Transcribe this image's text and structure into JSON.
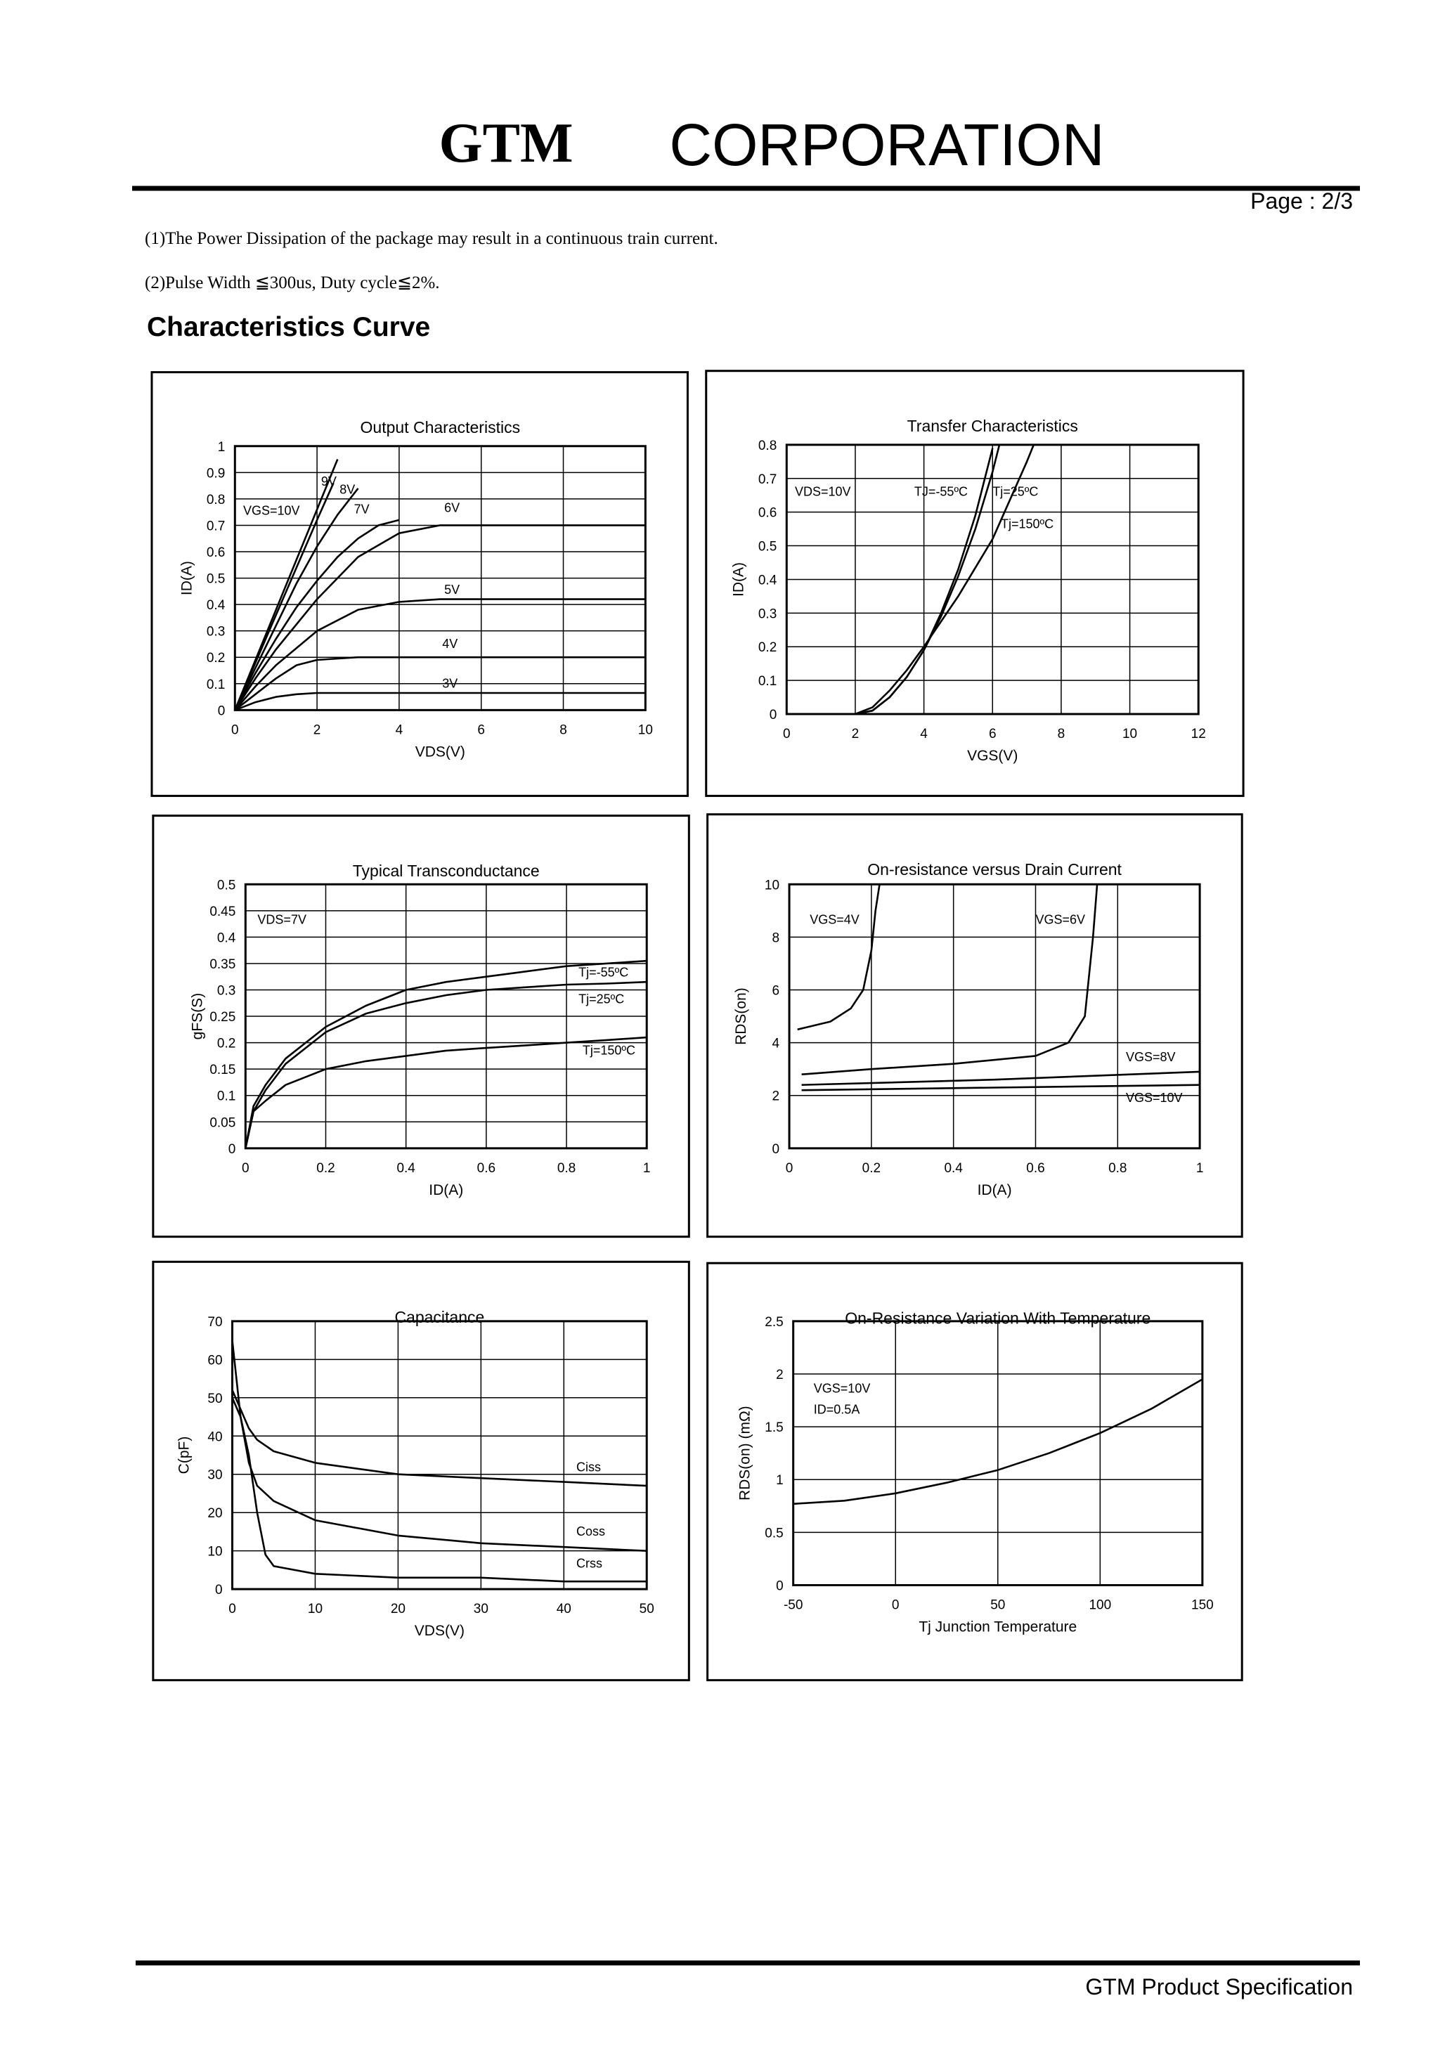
{
  "header": {
    "logo": "GTM",
    "title": "CORPORATION",
    "page": "Page : 2/3"
  },
  "notes": [
    "(1)The Power Dissipation of the package may result in a continuous train current.",
    "(2)Pulse Width ≦300us, Duty cycle≦2%."
  ],
  "section_title": "Characteristics Curve",
  "footer": "GTM Product Specification",
  "chart_data": [
    {
      "type": "line",
      "title": "Output Characteristics",
      "xlabel": "VDS(V)",
      "ylabel": "ID(A)",
      "xlim": [
        0,
        10
      ],
      "ylim": [
        0,
        1
      ],
      "xticks": [
        0,
        2,
        4,
        6,
        8,
        10
      ],
      "yticks": [
        0,
        0.1,
        0.2,
        0.3,
        0.4,
        0.5,
        0.6,
        0.7,
        0.8,
        0.9,
        1
      ],
      "grid": true,
      "color": "#000000",
      "series": [
        {
          "name": "VGS=10V",
          "x": [
            0,
            0.5,
            1,
            1.5,
            2,
            2.5
          ],
          "values": [
            0,
            0.19,
            0.38,
            0.57,
            0.76,
            0.95
          ]
        },
        {
          "name": "9V",
          "x": [
            0,
            0.5,
            1,
            1.5,
            2,
            2.4
          ],
          "values": [
            0,
            0.18,
            0.36,
            0.54,
            0.72,
            0.86
          ]
        },
        {
          "name": "8V",
          "x": [
            0,
            0.5,
            1,
            1.5,
            2,
            2.5,
            3
          ],
          "values": [
            0,
            0.16,
            0.32,
            0.48,
            0.62,
            0.74,
            0.84
          ]
        },
        {
          "name": "7V",
          "x": [
            0,
            0.5,
            1,
            1.5,
            2,
            2.5,
            3,
            3.5,
            4
          ],
          "values": [
            0,
            0.14,
            0.27,
            0.39,
            0.49,
            0.58,
            0.65,
            0.7,
            0.72
          ]
        },
        {
          "name": "6V",
          "x": [
            0,
            0.5,
            1,
            2,
            3,
            4,
            5,
            10
          ],
          "values": [
            0,
            0.12,
            0.23,
            0.42,
            0.58,
            0.67,
            0.7,
            0.7
          ]
        },
        {
          "name": "5V",
          "x": [
            0,
            0.5,
            1,
            2,
            3,
            4,
            5,
            10
          ],
          "values": [
            0,
            0.09,
            0.17,
            0.3,
            0.38,
            0.41,
            0.42,
            0.42
          ]
        },
        {
          "name": "4V",
          "x": [
            0,
            0.5,
            1,
            1.5,
            2,
            3,
            10
          ],
          "values": [
            0,
            0.06,
            0.12,
            0.17,
            0.19,
            0.2,
            0.2
          ]
        },
        {
          "name": "3V",
          "x": [
            0,
            0.5,
            1,
            1.5,
            2,
            10
          ],
          "values": [
            0,
            0.03,
            0.05,
            0.06,
            0.065,
            0.065
          ]
        }
      ]
    },
    {
      "type": "line",
      "title": "Transfer Characteristics",
      "xlabel": "VGS(V)",
      "ylabel": "ID(A)",
      "xlim": [
        0,
        12
      ],
      "ylim": [
        0,
        0.8
      ],
      "xticks": [
        0,
        2,
        4,
        6,
        8,
        10,
        12
      ],
      "yticks": [
        0,
        0.1,
        0.2,
        0.3,
        0.4,
        0.5,
        0.6,
        0.7,
        0.8
      ],
      "grid": true,
      "color": "#000000",
      "annotations": [
        "VDS=10V"
      ],
      "series": [
        {
          "name": "TJ=-55ºC",
          "x": [
            2,
            2.5,
            3,
            3.5,
            4,
            4.5,
            5,
            5.5,
            6
          ],
          "values": [
            0,
            0.01,
            0.05,
            0.11,
            0.19,
            0.3,
            0.43,
            0.59,
            0.79
          ]
        },
        {
          "name": "Tj=25ºC",
          "x": [
            2,
            2.5,
            3,
            3.5,
            4,
            4.5,
            5,
            5.5,
            6,
            6.2
          ],
          "values": [
            0,
            0.01,
            0.05,
            0.11,
            0.19,
            0.29,
            0.41,
            0.55,
            0.72,
            0.8
          ]
        },
        {
          "name": "Tj=150ºC",
          "x": [
            2,
            2.5,
            3,
            3.5,
            4,
            5,
            6,
            7,
            7.2
          ],
          "values": [
            0,
            0.02,
            0.07,
            0.13,
            0.2,
            0.35,
            0.52,
            0.75,
            0.8
          ]
        }
      ]
    },
    {
      "type": "line",
      "title": "Typical Transconductance",
      "xlabel": "ID(A)",
      "ylabel": "gFS(S)",
      "xlim": [
        0,
        1
      ],
      "ylim": [
        0,
        0.5
      ],
      "xticks": [
        0,
        0.2,
        0.4,
        0.6,
        0.8,
        1
      ],
      "yticks": [
        0,
        0.05,
        0.1,
        0.15,
        0.2,
        0.25,
        0.3,
        0.35,
        0.4,
        0.45,
        0.5
      ],
      "grid": true,
      "color": "#000000",
      "annotations": [
        "VDS=7V"
      ],
      "series": [
        {
          "name": "Tj=-55ºC",
          "x": [
            0,
            0.02,
            0.05,
            0.1,
            0.2,
            0.3,
            0.4,
            0.5,
            0.6,
            0.7,
            0.8,
            0.9,
            1
          ],
          "values": [
            0,
            0.08,
            0.12,
            0.17,
            0.23,
            0.27,
            0.3,
            0.315,
            0.325,
            0.335,
            0.345,
            0.35,
            0.355
          ]
        },
        {
          "name": "Tj=25ºC",
          "x": [
            0,
            0.02,
            0.05,
            0.1,
            0.2,
            0.3,
            0.4,
            0.5,
            0.6,
            0.7,
            0.8,
            0.9,
            1
          ],
          "values": [
            0,
            0.07,
            0.11,
            0.16,
            0.22,
            0.255,
            0.275,
            0.29,
            0.3,
            0.305,
            0.31,
            0.312,
            0.315
          ]
        },
        {
          "name": "Tj=150ºC",
          "x": [
            0,
            0.02,
            0.05,
            0.1,
            0.2,
            0.3,
            0.4,
            0.5,
            0.6,
            0.7,
            0.8,
            0.9,
            1
          ],
          "values": [
            0,
            0.07,
            0.09,
            0.12,
            0.15,
            0.165,
            0.175,
            0.185,
            0.19,
            0.195,
            0.2,
            0.205,
            0.21
          ]
        }
      ]
    },
    {
      "type": "line",
      "title": "On-resistance versus Drain Current",
      "xlabel": "ID(A)",
      "ylabel": "RDS(on)",
      "xlim": [
        0,
        1
      ],
      "ylim": [
        0,
        10
      ],
      "xticks": [
        0,
        0.2,
        0.4,
        0.6,
        0.8,
        1
      ],
      "yticks": [
        0,
        2,
        4,
        6,
        8,
        10
      ],
      "grid": true,
      "color": "#000000",
      "series": [
        {
          "name": "VGS=4V",
          "x": [
            0.02,
            0.1,
            0.15,
            0.18,
            0.2,
            0.21,
            0.22
          ],
          "values": [
            4.5,
            4.8,
            5.3,
            6,
            7.5,
            9,
            10
          ]
        },
        {
          "name": "VGS=6V",
          "x": [
            0.03,
            0.2,
            0.4,
            0.6,
            0.68,
            0.72,
            0.74,
            0.75
          ],
          "values": [
            2.8,
            3,
            3.2,
            3.5,
            4,
            5,
            8,
            10
          ]
        },
        {
          "name": "VGS=8V",
          "x": [
            0.03,
            0.5,
            1
          ],
          "values": [
            2.4,
            2.6,
            2.9
          ]
        },
        {
          "name": "VGS=10V",
          "x": [
            0.03,
            0.5,
            1
          ],
          "values": [
            2.2,
            2.3,
            2.4
          ]
        }
      ]
    },
    {
      "type": "line",
      "title": "Capacitance",
      "xlabel": "VDS(V)",
      "ylabel": "C(pF)",
      "xlim": [
        0,
        50
      ],
      "ylim": [
        0,
        70
      ],
      "xticks": [
        0,
        10,
        20,
        30,
        40,
        50
      ],
      "yticks": [
        0,
        10,
        20,
        30,
        40,
        50,
        60,
        70
      ],
      "grid": true,
      "color": "#000000",
      "series": [
        {
          "name": "Ciss",
          "x": [
            0,
            1,
            2,
            3,
            5,
            10,
            20,
            30,
            40,
            50
          ],
          "values": [
            52,
            47,
            42,
            39,
            36,
            33,
            30,
            29,
            28,
            27
          ]
        },
        {
          "name": "Coss",
          "x": [
            0,
            1,
            2,
            3,
            5,
            10,
            20,
            30,
            40,
            50
          ],
          "values": [
            65,
            45,
            33,
            27,
            23,
            18,
            14,
            12,
            11,
            10
          ]
        },
        {
          "name": "Crss",
          "x": [
            0,
            1,
            2,
            3,
            4,
            5,
            10,
            20,
            30,
            40,
            50
          ],
          "values": [
            50,
            45,
            35,
            20,
            9,
            6,
            4,
            3,
            3,
            2,
            2
          ]
        }
      ]
    },
    {
      "type": "line",
      "title": "On-Resistance Variation With Temperature",
      "xlabel": "Tj Junction Temperature",
      "ylabel": "RDS(on) (mΩ)",
      "xlim": [
        -50,
        150
      ],
      "ylim": [
        0,
        2.5
      ],
      "xticks": [
        -50,
        0,
        50,
        100,
        150
      ],
      "yticks": [
        0,
        0.5,
        1,
        1.5,
        2,
        2.5
      ],
      "grid": true,
      "color": "#000000",
      "annotations": [
        "VGS=10V",
        "ID=0.5A"
      ],
      "series": [
        {
          "x": [
            -50,
            -25,
            0,
            25,
            50,
            75,
            100,
            125,
            150
          ],
          "values": [
            0.77,
            0.8,
            0.87,
            0.97,
            1.09,
            1.25,
            1.44,
            1.67,
            1.95
          ]
        }
      ]
    }
  ]
}
